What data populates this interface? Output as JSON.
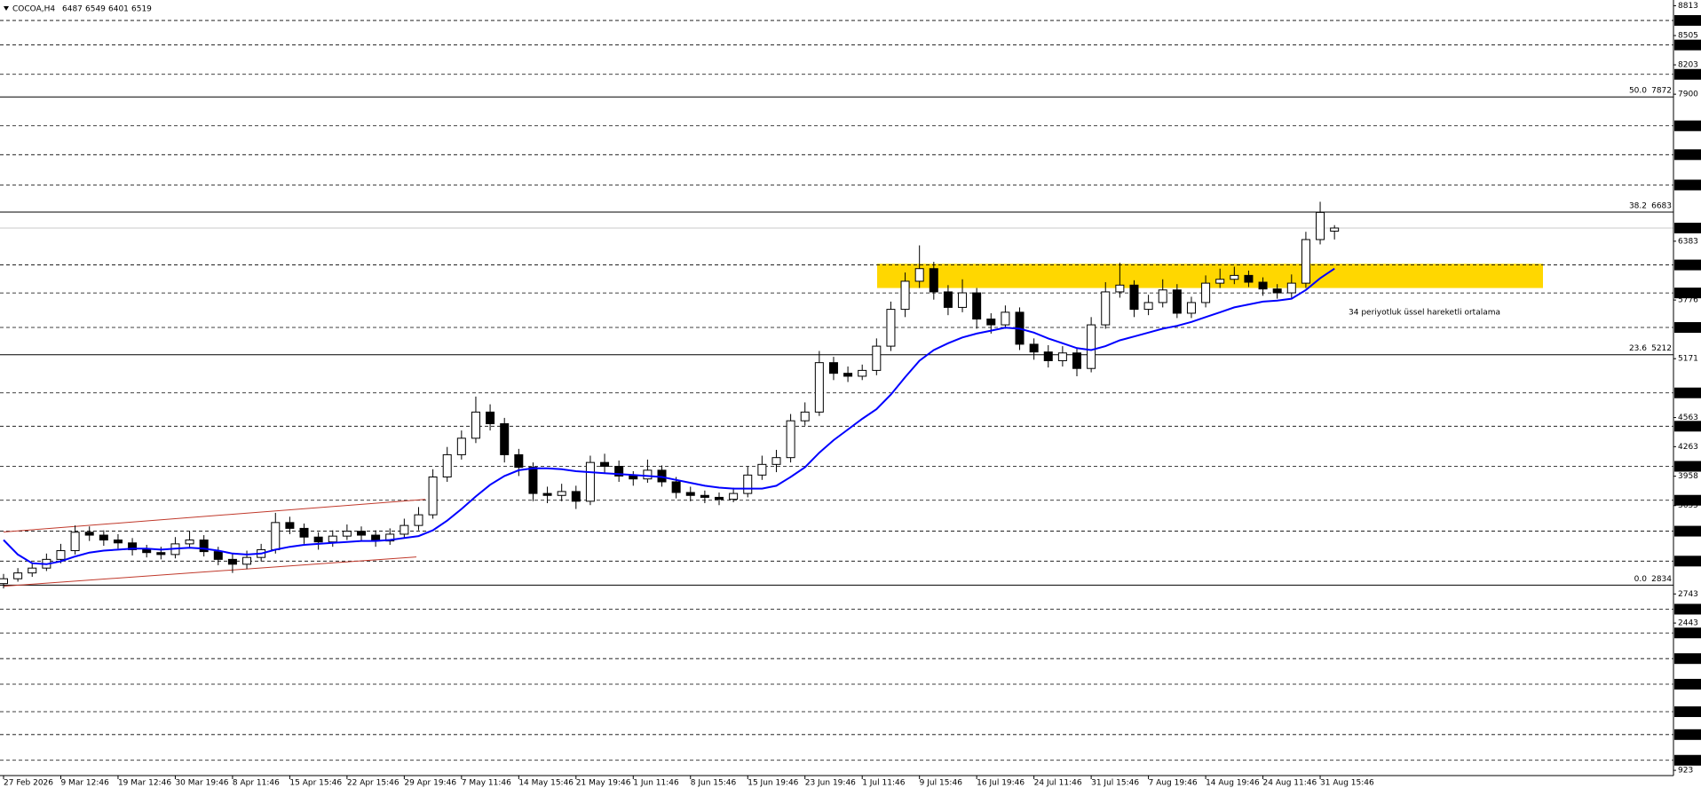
{
  "chart_data": {
    "type": "candlestick",
    "symbol": "COCOA,H4",
    "ohlc": [
      6487,
      6549,
      6401,
      6519
    ],
    "categories": [
      "27 Feb 2026",
      null,
      null,
      null,
      "9 Mar 12:46",
      null,
      null,
      null,
      "19 Mar 12:46",
      null,
      null,
      null,
      "30 Mar 19:46",
      null,
      null,
      null,
      "8 Apr 11:46",
      null,
      null,
      null,
      "15 Apr 15:46",
      null,
      null,
      null,
      "22 Apr 15:46",
      null,
      null,
      null,
      "29 Apr 19:46",
      null,
      null,
      null,
      "7 May 11:46",
      null,
      null,
      null,
      "14 May 15:46",
      null,
      null,
      null,
      "21 May 19:46",
      null,
      null,
      null,
      "1 Jun 11:46",
      null,
      null,
      null,
      "8 Jun 15:46",
      null,
      null,
      null,
      "15 Jun 19:46",
      null,
      null,
      null,
      "23 Jun 19:46",
      null,
      null,
      null,
      "1 Jul 11:46",
      null,
      null,
      null,
      "9 Jul 15:46",
      null,
      null,
      null,
      "16 Jul 19:46",
      null,
      null,
      null,
      "24 Jul 11:46",
      null,
      null,
      null,
      "31 Jul 15:46",
      null,
      null,
      null,
      "7 Aug 19:46",
      null,
      null,
      null,
      "14 Aug 19:46",
      null,
      null,
      null,
      "24 Aug 11:46",
      null,
      null,
      null,
      "31 Aug 15:46",
      null
    ],
    "candles": {
      "up_color": "#ffffff",
      "down_color": "#000000",
      "edge_color": "#000000",
      "open": [
        2850,
        2900,
        2960,
        3010,
        3100,
        3190,
        3380,
        3350,
        3300,
        3270,
        3200,
        3170,
        3150,
        3260,
        3300,
        3180,
        3100,
        3050,
        3120,
        3200,
        3480,
        3420,
        3330,
        3280,
        3340,
        3390,
        3350,
        3290,
        3360,
        3450,
        3560,
        3950,
        4180,
        4350,
        4620,
        4500,
        4180,
        4050,
        3780,
        3760,
        3800,
        3700,
        4100,
        4060,
        3960,
        3930,
        4020,
        3900,
        3790,
        3760,
        3740,
        3720,
        3780,
        3970,
        4080,
        4150,
        4530,
        4620,
        5130,
        5020,
        4990,
        5050,
        5300,
        5680,
        5970,
        6100,
        5860,
        5700,
        5850,
        5580,
        5520,
        5650,
        5320,
        5240,
        5150,
        5230,
        5070,
        5520,
        5860,
        5930,
        5680,
        5750,
        5880,
        5640,
        5750,
        5950,
        5990,
        6030,
        5960,
        5890,
        5850,
        5950,
        6400,
        6487
      ],
      "high": [
        2950,
        3010,
        3070,
        3160,
        3260,
        3450,
        3440,
        3400,
        3360,
        3320,
        3250,
        3230,
        3330,
        3390,
        3350,
        3230,
        3160,
        3190,
        3260,
        3580,
        3540,
        3470,
        3380,
        3400,
        3460,
        3440,
        3400,
        3420,
        3520,
        3640,
        4030,
        4260,
        4430,
        4780,
        4700,
        4560,
        4240,
        4100,
        3850,
        3880,
        3860,
        4170,
        4190,
        4120,
        4010,
        4130,
        4070,
        3950,
        3850,
        3810,
        3790,
        3840,
        4060,
        4170,
        4230,
        4600,
        4720,
        5250,
        5190,
        5090,
        5110,
        5380,
        5760,
        6060,
        6340,
        6170,
        5930,
        5990,
        5900,
        5640,
        5720,
        5700,
        5380,
        5310,
        5300,
        5280,
        5600,
        5960,
        6160,
        5980,
        5830,
        5990,
        5940,
        5810,
        6030,
        6100,
        6120,
        6080,
        6010,
        5940,
        6040,
        6480,
        6790,
        6549
      ],
      "low": [
        2800,
        2870,
        2920,
        2980,
        3060,
        3150,
        3290,
        3240,
        3210,
        3140,
        3120,
        3100,
        3110,
        3220,
        3130,
        3040,
        2960,
        3000,
        3080,
        3160,
        3360,
        3260,
        3200,
        3230,
        3300,
        3290,
        3230,
        3250,
        3320,
        3400,
        3520,
        3900,
        4130,
        4300,
        4430,
        4100,
        3960,
        3700,
        3680,
        3700,
        3620,
        3660,
        3990,
        3900,
        3860,
        3890,
        3850,
        3730,
        3700,
        3680,
        3660,
        3690,
        3740,
        3920,
        4000,
        4100,
        4480,
        4580,
        4950,
        4930,
        4950,
        5000,
        5250,
        5600,
        5900,
        5780,
        5620,
        5650,
        5480,
        5430,
        5480,
        5260,
        5160,
        5080,
        5090,
        4990,
        5030,
        5480,
        5800,
        5600,
        5620,
        5700,
        5590,
        5590,
        5700,
        5900,
        5940,
        5910,
        5820,
        5790,
        5800,
        5900,
        6350,
        6401
      ],
      "close": [
        2900,
        2960,
        3010,
        3100,
        3190,
        3380,
        3350,
        3300,
        3270,
        3200,
        3170,
        3150,
        3260,
        3300,
        3180,
        3100,
        3050,
        3120,
        3200,
        3480,
        3420,
        3330,
        3280,
        3340,
        3390,
        3350,
        3290,
        3360,
        3450,
        3560,
        3950,
        4180,
        4350,
        4620,
        4500,
        4180,
        4050,
        3780,
        3760,
        3800,
        3700,
        4100,
        4060,
        3960,
        3930,
        4020,
        3900,
        3790,
        3760,
        3740,
        3720,
        3780,
        3970,
        4080,
        4150,
        4530,
        4620,
        5130,
        5020,
        4990,
        5050,
        5300,
        5680,
        5970,
        6100,
        5860,
        5700,
        5850,
        5580,
        5520,
        5650,
        5320,
        5240,
        5150,
        5230,
        5070,
        5520,
        5860,
        5930,
        5680,
        5750,
        5880,
        5640,
        5750,
        5950,
        5990,
        6030,
        5960,
        5890,
        5850,
        5950,
        6400,
        6680,
        6519
      ]
    },
    "ema": {
      "name": "34 periyotluk üssel hareketli ortalama",
      "color": "#0000ff",
      "values": [
        3300,
        3150,
        3060,
        3050,
        3080,
        3130,
        3170,
        3190,
        3200,
        3210,
        3210,
        3200,
        3210,
        3220,
        3210,
        3190,
        3160,
        3150,
        3160,
        3200,
        3230,
        3250,
        3260,
        3270,
        3280,
        3290,
        3290,
        3300,
        3320,
        3340,
        3400,
        3500,
        3620,
        3750,
        3870,
        3960,
        4020,
        4040,
        4040,
        4030,
        4010,
        4000,
        3990,
        3980,
        3970,
        3960,
        3950,
        3920,
        3890,
        3860,
        3840,
        3830,
        3830,
        3830,
        3860,
        3950,
        4050,
        4200,
        4330,
        4440,
        4550,
        4650,
        4800,
        4980,
        5150,
        5260,
        5330,
        5390,
        5430,
        5460,
        5490,
        5480,
        5440,
        5380,
        5330,
        5280,
        5260,
        5300,
        5360,
        5400,
        5440,
        5480,
        5510,
        5550,
        5600,
        5650,
        5700,
        5730,
        5760,
        5770,
        5790,
        5880,
        6000,
        6100
      ]
    },
    "levels": [
      8661,
      8408,
      8105,
      7574,
      7276,
      6963,
      6138,
      5849,
      5493,
      4818,
      4474,
      4060,
      3710,
      3391,
      3082,
      2586,
      2341,
      2076,
      1812,
      1528,
      1292,
      1027
    ],
    "price_line": 6519,
    "fibonacci": [
      {
        "label": "50.0",
        "value": 7872
      },
      {
        "label": "38.2",
        "value": 6683
      },
      {
        "label": "23.6",
        "value": 5212
      },
      {
        "label": "0.0",
        "value": 2834
      }
    ],
    "zone": [
      5900,
      6150
    ],
    "zone_color": "#ffd700",
    "channel": {
      "upper": [
        3383,
        3719
      ],
      "lower": [
        2823,
        3125
      ],
      "color": "#c0392b"
    },
    "ylim": [
      869,
      8872
    ],
    "yticks": [
      8813,
      8505,
      8203,
      7900,
      6383,
      5776,
      5171,
      4563,
      4263,
      3958,
      3655,
      2743,
      2443,
      923
    ]
  }
}
